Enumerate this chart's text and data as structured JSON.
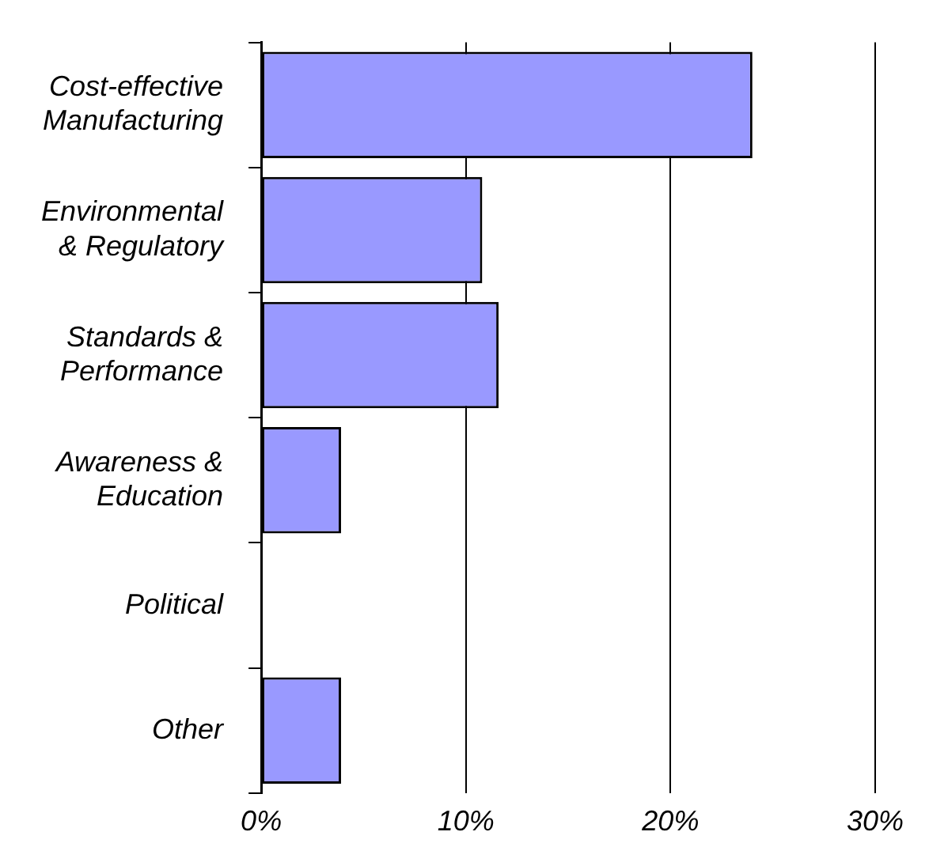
{
  "chart_data": {
    "type": "bar",
    "orientation": "horizontal",
    "categories": [
      "Cost-effective\nManufacturing",
      "Environmental\n& Regulatory",
      "Standards &\nPerformance",
      "Awareness &\nEducation",
      "Political",
      "Other"
    ],
    "values": [
      24,
      10.8,
      11.6,
      3.9,
      0,
      3.9
    ],
    "color": "#9999ff",
    "xlim": [
      0,
      30
    ],
    "xticks": [
      {
        "value": 0,
        "label": "0%"
      },
      {
        "value": 10,
        "label": "10%"
      },
      {
        "value": 20,
        "label": "20%"
      },
      {
        "value": 30,
        "label": "30%"
      }
    ],
    "grid": "x"
  }
}
